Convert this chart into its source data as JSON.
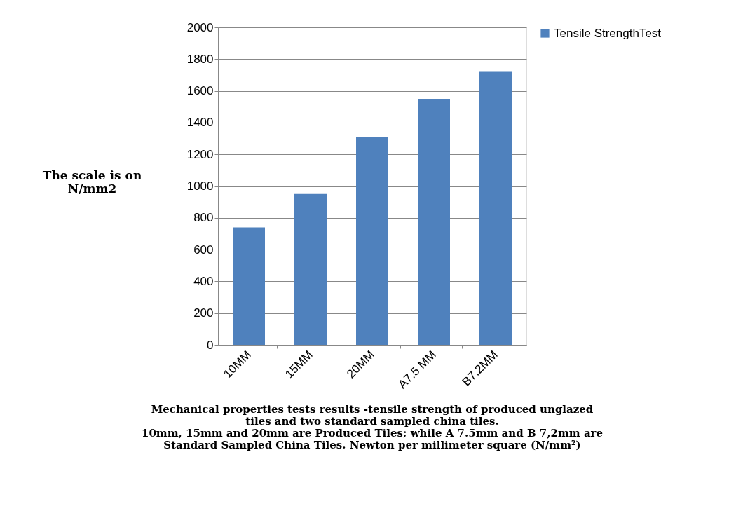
{
  "chart_data": {
    "type": "bar",
    "ylabel": "The scale is on N/mm2",
    "categories": [
      "10MM",
      "15MM",
      "20MM",
      "A7.5 MM",
      "B7.2MM"
    ],
    "series": [
      {
        "name": "Tensile StrengthTest",
        "color": "#4f81bd",
        "values": [
          740,
          950,
          1310,
          1550,
          1720
        ]
      }
    ],
    "ylim": [
      0,
      2000
    ],
    "yticks": [
      0,
      200,
      400,
      600,
      800,
      1000,
      1200,
      1400,
      1600,
      1800,
      2000
    ],
    "grid": "y",
    "legend": "right",
    "annotations": [
      "Mechanical properties tests results -tensile strength of  produced unglazed tiles and two standard sampled china tiles.",
      "10mm, 15mm and 20mm are Produced Tiles; while A 7.5mm and B 7,2mm are Standard Sampled China Tiles. Newton per millimeter square (N/mm²)"
    ]
  }
}
